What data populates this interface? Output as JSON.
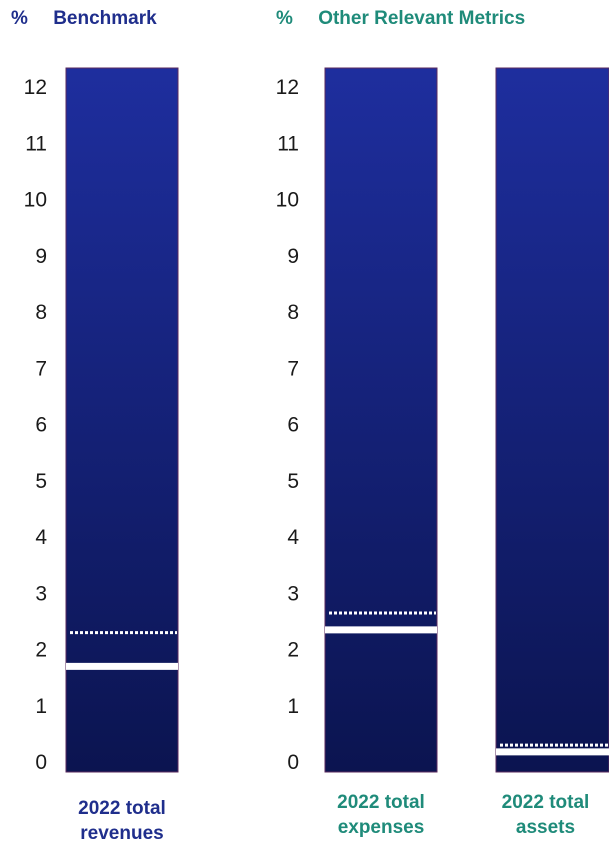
{
  "colors": {
    "benchmark_text": "#1f2e8c",
    "other_text": "#1f8b7a",
    "axis_text": "#1a1a1a",
    "bar_top": "#1e2e9e",
    "bar_bottom": "#0b1450",
    "bar_border": "#5a2a5e",
    "marker": "#ffffff"
  },
  "headers": {
    "benchmark": {
      "percent": "%",
      "title": "Benchmark"
    },
    "other": {
      "percent": "%",
      "title": "Other Relevant Metrics"
    }
  },
  "chart_data": {
    "type": "bar",
    "ylabel": "%",
    "ylim": [
      0,
      12
    ],
    "yticks": [
      "0",
      "1",
      "2",
      "3",
      "4",
      "5",
      "6",
      "7",
      "8",
      "9",
      "10",
      "11",
      "12"
    ],
    "grid": false,
    "legend": "none",
    "groups": [
      {
        "name": "Benchmark",
        "bars": [
          {
            "line1": "2022 total",
            "line2": "revenues",
            "solid_value": 1.7,
            "dotted_value": 2.3
          }
        ]
      },
      {
        "name": "Other Relevant Metrics",
        "bars": [
          {
            "line1": "2022 total",
            "line2": "expenses",
            "solid_value": 2.35,
            "dotted_value": 2.65
          },
          {
            "line1": "2022 total",
            "line2": "assets",
            "solid_value": 0.18,
            "dotted_value": 0.3
          }
        ]
      }
    ]
  }
}
